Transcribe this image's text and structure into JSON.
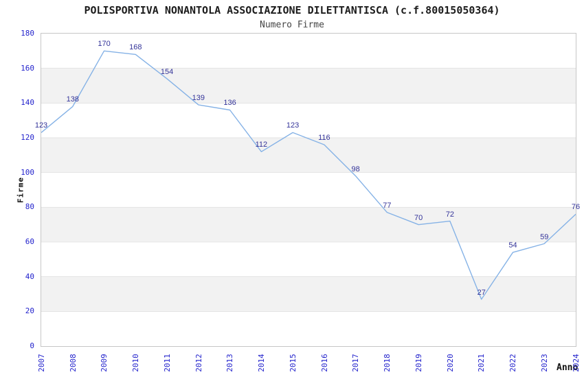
{
  "header": {
    "title": "POLISPORTIVA NONANTOLA ASSOCIAZIONE DILETTANTISCA (c.f.80015050364)",
    "subtitle": "Numero Firme"
  },
  "chart_data": {
    "type": "line",
    "title": "POLISPORTIVA NONANTOLA ASSOCIAZIONE DILETTANTISCA (c.f.80015050364)",
    "subtitle": "Numero Firme",
    "xlabel": "Anno",
    "ylabel": "Firme",
    "categories": [
      "2007",
      "2008",
      "2009",
      "2010",
      "2011",
      "2012",
      "2013",
      "2014",
      "2015",
      "2016",
      "2017",
      "2018",
      "2019",
      "2020",
      "2021",
      "2022",
      "2023",
      "2024"
    ],
    "series": [
      {
        "name": "Numero Firme",
        "values": [
          123,
          138,
          170,
          168,
          154,
          139,
          136,
          112,
          123,
          116,
          98,
          77,
          70,
          72,
          27,
          54,
          59,
          76
        ]
      }
    ],
    "ylim": [
      0,
      180
    ],
    "ytick_step": 20,
    "legend": "none",
    "grid": "alternating-horizontal-bands",
    "point_labels": "values-above-points",
    "colors": {
      "line": "#85b2e6",
      "tick_labels": "#2222cc",
      "value_labels": "#333399",
      "band_alt": "#f2f2f2",
      "band_base": "#ffffff",
      "gridline": "#e4e4e4",
      "plot_border": "#c6c6c6"
    }
  }
}
